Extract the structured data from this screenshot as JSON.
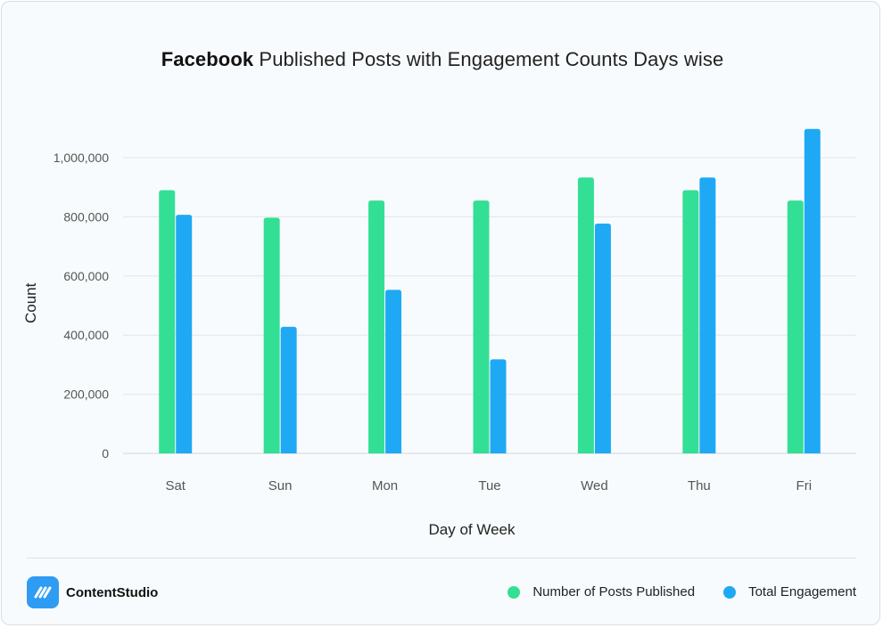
{
  "title": {
    "brand": "Facebook",
    "rest": " Published Posts with Engagement Counts Days wise"
  },
  "footer": {
    "logo_text": "ContentStudio"
  },
  "colors": {
    "posts": "#33df95",
    "engagement": "#1fa9f5",
    "grid": "#e2e6ea",
    "axis_text": "#555555"
  },
  "chart_data": {
    "type": "bar",
    "title": "Facebook Published Posts with Engagement Counts Days wise",
    "xlabel": "Day of Week",
    "ylabel": "Count",
    "categories": [
      "Sat",
      "Sun",
      "Mon",
      "Tue",
      "Wed",
      "Thu",
      "Fri"
    ],
    "ylim": [
      0,
      1000000
    ],
    "yticks": [
      0,
      200000,
      400000,
      600000,
      800000,
      1000000
    ],
    "ytick_labels": [
      "0",
      "200,000",
      "400,000",
      "600,000",
      "800,000",
      "1,000,000"
    ],
    "grid": true,
    "legend_position": "bottom-right",
    "series": [
      {
        "name": "Number of Posts Published",
        "values": [
          890000,
          797000,
          855000,
          855000,
          933000,
          890000,
          855000
        ]
      },
      {
        "name": "Total Engagement",
        "values": [
          807000,
          428000,
          553000,
          318000,
          777000,
          933000,
          1097000
        ]
      }
    ]
  }
}
